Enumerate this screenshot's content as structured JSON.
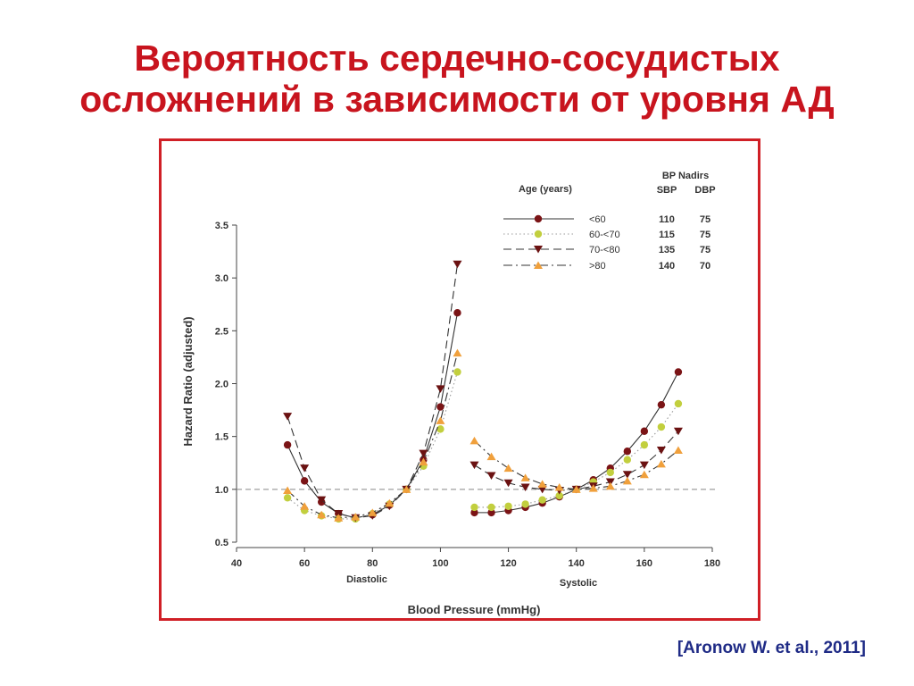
{
  "title": {
    "line1": "Вероятность сердечно-сосудистых",
    "line2": "осложнений в зависимости от уровня АД"
  },
  "citation": "[Aronow W. et al., 2011]",
  "colors": {
    "title": "#c8141e",
    "frame": "#d01f26",
    "citation": "#1f2b86",
    "lt60": "#7b1416",
    "60to70": "#c2cf3e",
    "70to80": "#6b1212",
    "ge80": "#f0a03c"
  },
  "chart_data": {
    "type": "line",
    "xlabel": "Blood Pressure (mmHg)",
    "ylabel": "Hazard Ratio (adjusted)",
    "xlim": [
      40,
      180
    ],
    "ylim": [
      0.5,
      3.5
    ],
    "x_ticks": [
      "40",
      "60",
      "80",
      "100",
      "120",
      "140",
      "160",
      "180"
    ],
    "y_ticks": [
      "0.5",
      "1.0",
      "1.5",
      "2.0",
      "2.5",
      "3.0",
      "3.5"
    ],
    "reference_line": 1.0,
    "panel_labels": [
      "Diastolic",
      "Systolic"
    ],
    "legend": {
      "header_age": "Age (years)",
      "header_nadirs": "BP Nadirs",
      "header_sbp": "SBP",
      "header_dbp": "DBP",
      "placement": "top-right"
    },
    "series": [
      {
        "name": "<60",
        "marker": "circle",
        "line": "solid",
        "color": "#7b1416",
        "nadir_sbp": "110",
        "nadir_dbp": "75",
        "diastolic": [
          [
            55,
            1.42
          ],
          [
            60,
            1.08
          ],
          [
            65,
            0.88
          ],
          [
            70,
            0.77
          ],
          [
            75,
            0.73
          ],
          [
            80,
            0.76
          ],
          [
            85,
            0.85
          ],
          [
            90,
            1.0
          ],
          [
            95,
            1.28
          ],
          [
            100,
            1.78
          ],
          [
            105,
            2.67
          ]
        ],
        "systolic": [
          [
            110,
            0.78
          ],
          [
            115,
            0.78
          ],
          [
            120,
            0.8
          ],
          [
            125,
            0.83
          ],
          [
            130,
            0.87
          ],
          [
            135,
            0.93
          ],
          [
            140,
            1.0
          ],
          [
            145,
            1.09
          ],
          [
            150,
            1.2
          ],
          [
            155,
            1.36
          ],
          [
            160,
            1.55
          ],
          [
            165,
            1.8
          ],
          [
            170,
            2.11
          ]
        ]
      },
      {
        "name": "60-<70",
        "marker": "circle",
        "line": "dotted",
        "color": "#c2cf3e",
        "nadir_sbp": "115",
        "nadir_dbp": "75",
        "diastolic": [
          [
            55,
            0.92
          ],
          [
            60,
            0.8
          ],
          [
            65,
            0.75
          ],
          [
            70,
            0.72
          ],
          [
            75,
            0.72
          ],
          [
            80,
            0.77
          ],
          [
            85,
            0.86
          ],
          [
            90,
            1.0
          ],
          [
            95,
            1.22
          ],
          [
            100,
            1.57
          ],
          [
            105,
            2.11
          ]
        ],
        "systolic": [
          [
            110,
            0.83
          ],
          [
            115,
            0.83
          ],
          [
            120,
            0.84
          ],
          [
            125,
            0.86
          ],
          [
            130,
            0.9
          ],
          [
            135,
            0.94
          ],
          [
            140,
            1.0
          ],
          [
            145,
            1.07
          ],
          [
            150,
            1.16
          ],
          [
            155,
            1.28
          ],
          [
            160,
            1.42
          ],
          [
            165,
            1.59
          ],
          [
            170,
            1.81
          ]
        ]
      },
      {
        "name": "70-<80",
        "marker": "triangle-down",
        "line": "dashed",
        "color": "#6b1212",
        "nadir_sbp": "135",
        "nadir_dbp": "75",
        "diastolic": [
          [
            55,
            1.69
          ],
          [
            60,
            1.2
          ],
          [
            65,
            0.9
          ],
          [
            70,
            0.77
          ],
          [
            75,
            0.73
          ],
          [
            80,
            0.75
          ],
          [
            85,
            0.84
          ],
          [
            90,
            1.0
          ],
          [
            95,
            1.34
          ],
          [
            100,
            1.95
          ],
          [
            105,
            3.13
          ]
        ],
        "systolic": [
          [
            110,
            1.23
          ],
          [
            115,
            1.13
          ],
          [
            120,
            1.06
          ],
          [
            125,
            1.02
          ],
          [
            130,
            1.0
          ],
          [
            135,
            0.99
          ],
          [
            140,
            1.0
          ],
          [
            145,
            1.03
          ],
          [
            150,
            1.07
          ],
          [
            155,
            1.14
          ],
          [
            160,
            1.23
          ],
          [
            165,
            1.37
          ],
          [
            170,
            1.55
          ]
        ]
      },
      {
        "name": ">80",
        "marker": "triangle-up",
        "line": "dashdot",
        "color": "#f0a03c",
        "nadir_sbp": "140",
        "nadir_dbp": "70",
        "diastolic": [
          [
            55,
            0.99
          ],
          [
            60,
            0.84
          ],
          [
            65,
            0.76
          ],
          [
            70,
            0.73
          ],
          [
            75,
            0.74
          ],
          [
            80,
            0.78
          ],
          [
            85,
            0.87
          ],
          [
            90,
            1.0
          ],
          [
            95,
            1.26
          ],
          [
            100,
            1.65
          ],
          [
            105,
            2.29
          ]
        ],
        "systolic": [
          [
            110,
            1.46
          ],
          [
            115,
            1.31
          ],
          [
            120,
            1.2
          ],
          [
            125,
            1.11
          ],
          [
            130,
            1.05
          ],
          [
            135,
            1.02
          ],
          [
            140,
            1.0
          ],
          [
            145,
            1.01
          ],
          [
            150,
            1.03
          ],
          [
            155,
            1.08
          ],
          [
            160,
            1.14
          ],
          [
            165,
            1.24
          ],
          [
            170,
            1.37
          ]
        ]
      }
    ]
  }
}
